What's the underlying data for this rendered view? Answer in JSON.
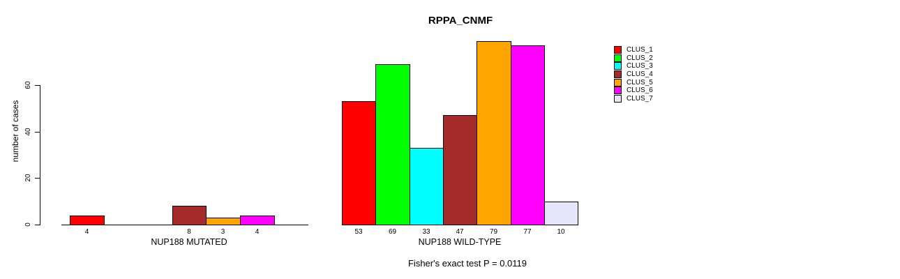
{
  "title": "RPPA_CNMF",
  "chart_data": {
    "type": "bar",
    "title": "RPPA_CNMF",
    "ylabel": "number of cases",
    "xlabel": "",
    "ylim": [
      0,
      80
    ],
    "yticks": [
      0,
      20,
      40,
      60
    ],
    "grid": false,
    "legend_position": "right",
    "bar_value_labels": "shown under each nonzero bar",
    "categories": [
      "NUP188 MUTATED",
      "NUP188 WILD-TYPE"
    ],
    "series": [
      {
        "name": "CLUS_1",
        "color": "#ff0000",
        "values": [
          4,
          53
        ]
      },
      {
        "name": "CLUS_2",
        "color": "#00ff00",
        "values": [
          0,
          69
        ]
      },
      {
        "name": "CLUS_3",
        "color": "#00ffff",
        "values": [
          0,
          33
        ]
      },
      {
        "name": "CLUS_4",
        "color": "#a52a2a",
        "values": [
          8,
          47
        ]
      },
      {
        "name": "CLUS_5",
        "color": "#ffa500",
        "values": [
          3,
          79
        ]
      },
      {
        "name": "CLUS_6",
        "color": "#ff00ff",
        "values": [
          4,
          77
        ]
      },
      {
        "name": "CLUS_7",
        "color": "#e6e6fa",
        "values": [
          0,
          10
        ]
      }
    ],
    "annotation": "Fisher's exact test P = 0.0119",
    "axis_color": "#000000"
  }
}
